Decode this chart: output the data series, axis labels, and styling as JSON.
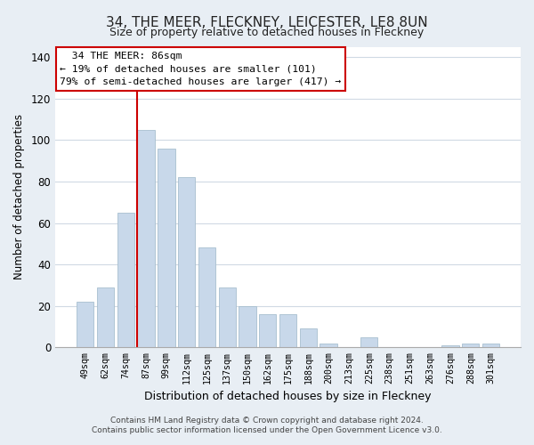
{
  "title": "34, THE MEER, FLECKNEY, LEICESTER, LE8 8UN",
  "subtitle": "Size of property relative to detached houses in Fleckney",
  "xlabel": "Distribution of detached houses by size in Fleckney",
  "ylabel": "Number of detached properties",
  "bar_color": "#c8d8ea",
  "bar_edge_color": "#a8bfcf",
  "categories": [
    "49sqm",
    "62sqm",
    "74sqm",
    "87sqm",
    "99sqm",
    "112sqm",
    "125sqm",
    "137sqm",
    "150sqm",
    "162sqm",
    "175sqm",
    "188sqm",
    "200sqm",
    "213sqm",
    "225sqm",
    "238sqm",
    "251sqm",
    "263sqm",
    "276sqm",
    "288sqm",
    "301sqm"
  ],
  "values": [
    22,
    29,
    65,
    105,
    96,
    82,
    48,
    29,
    20,
    16,
    16,
    9,
    2,
    0,
    5,
    0,
    0,
    0,
    1,
    2,
    2
  ],
  "vline_index": 3,
  "vline_color": "#cc0000",
  "ylim": [
    0,
    145
  ],
  "yticks": [
    0,
    20,
    40,
    60,
    80,
    100,
    120,
    140
  ],
  "annotation_title": "34 THE MEER: 86sqm",
  "annotation_line1": "← 19% of detached houses are smaller (101)",
  "annotation_line2": "79% of semi-detached houses are larger (417) →",
  "footer_line1": "Contains HM Land Registry data © Crown copyright and database right 2024.",
  "footer_line2": "Contains public sector information licensed under the Open Government Licence v3.0.",
  "bg_color": "#e8eef4",
  "plot_bg_color": "#ffffff",
  "grid_color": "#d0dae4"
}
